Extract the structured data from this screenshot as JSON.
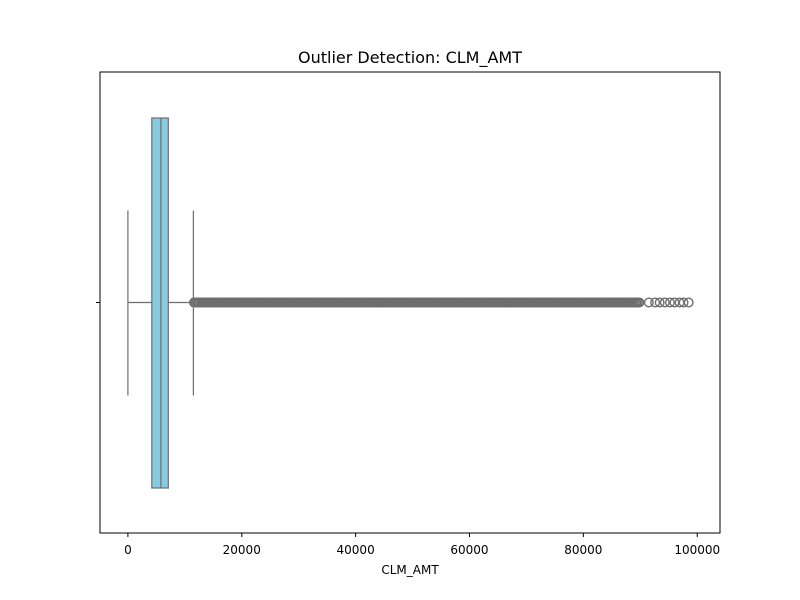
{
  "chart_data": {
    "type": "box",
    "orientation": "horizontal",
    "title": "Outlier Detection: CLM_AMT",
    "xlabel": "CLM_AMT",
    "ylabel": "",
    "xlim": [
      -4900,
      104000
    ],
    "x_ticks": [
      0,
      20000,
      40000,
      60000,
      80000,
      100000
    ],
    "x_tick_labels": [
      "0",
      "20000",
      "40000",
      "60000",
      "80000",
      "100000"
    ],
    "grid": false,
    "legend": "none",
    "box": {
      "whisker_low": 0,
      "q1": 4200,
      "median": 5800,
      "q3": 7100,
      "whisker_high": 11500,
      "outlier_min": 11600,
      "outlier_max": 98500
    },
    "colors": {
      "box_fill": "#87cbe0",
      "box_edge": "#6e6e6e",
      "outlier": "#6e6e6e"
    }
  }
}
